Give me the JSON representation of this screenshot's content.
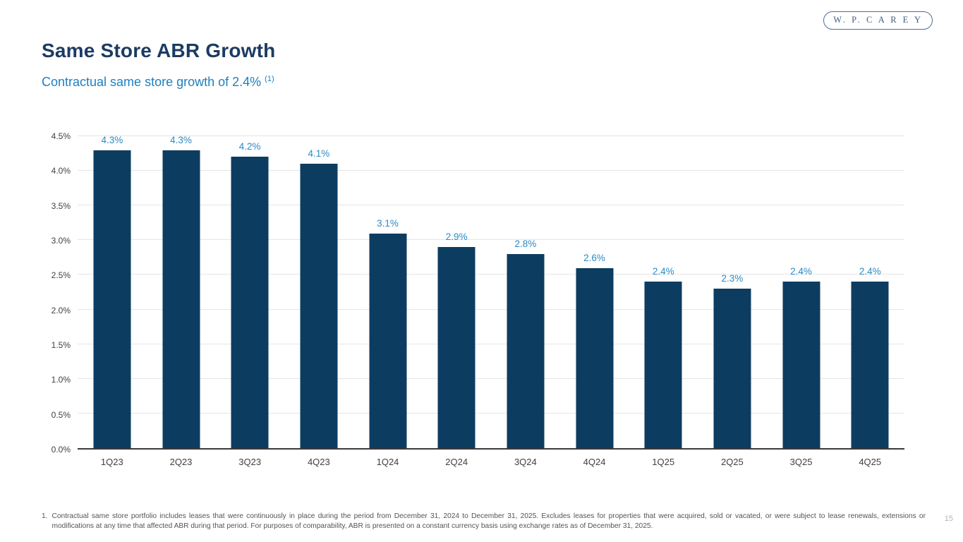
{
  "logo": {
    "text": "W. P. C A R E Y"
  },
  "header": {
    "title": "Same Store ABR Growth",
    "subtitle": "Contractual same store growth of 2.4%",
    "subtitle_superscript": "(1)"
  },
  "chart_data": {
    "type": "bar",
    "categories": [
      "1Q23",
      "2Q23",
      "3Q23",
      "4Q23",
      "1Q24",
      "2Q24",
      "3Q24",
      "4Q24",
      "1Q25",
      "2Q25",
      "3Q25",
      "4Q25"
    ],
    "values": [
      4.3,
      4.3,
      4.2,
      4.1,
      3.1,
      2.9,
      2.8,
      2.6,
      2.4,
      2.3,
      2.4,
      2.4
    ],
    "value_labels": [
      "4.3%",
      "4.3%",
      "4.2%",
      "4.1%",
      "3.1%",
      "2.9%",
      "2.8%",
      "2.6%",
      "2.4%",
      "2.3%",
      "2.4%",
      "2.4%"
    ],
    "title": "",
    "xlabel": "",
    "ylabel": "",
    "ylim": [
      0,
      4.5
    ],
    "ytick_step": 0.5,
    "ytick_labels": [
      "0.0%",
      "0.5%",
      "1.0%",
      "1.5%",
      "2.0%",
      "2.5%",
      "3.0%",
      "3.5%",
      "4.0%",
      "4.5%"
    ],
    "grid": true,
    "legend": false,
    "bar_color": "#0d3c61",
    "label_color": "#2b8ac4"
  },
  "footnote": {
    "number": "1.",
    "text": "Contractual same store portfolio includes leases that were continuously in place during the period from December 31, 2024 to December 31, 2025. Excludes leases for properties that were acquired, sold or vacated, or were subject to lease renewals, extensions or modifications at any time that affected ABR during that period. For purposes of comparability, ABR is presented on a constant currency basis using exchange rates as of December 31, 2025."
  },
  "page_number": "15",
  "colors": {
    "title": "#1b3b63",
    "subtitle": "#1e7fc0",
    "axis_text": "#414042",
    "gridline": "#e5e5e5",
    "axis_line": "#3a3a3a",
    "footnote": "#545454",
    "page_number": "#b2b2b2",
    "logo": "#3f5e85"
  }
}
